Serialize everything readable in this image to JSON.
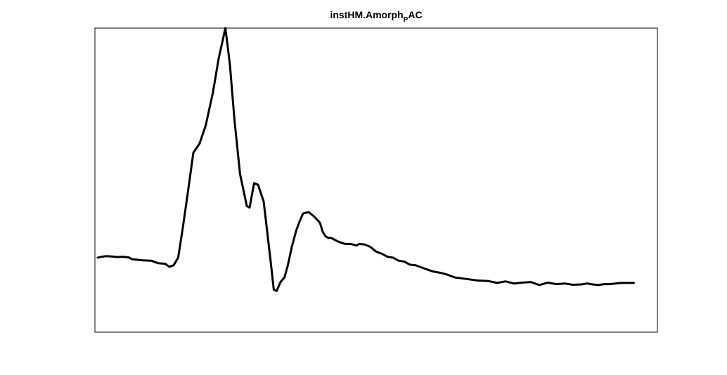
{
  "chart_data": {
    "type": "line",
    "title": "instHM.Amorph",
    "title_subscript": "P",
    "title_suffix": "AC",
    "xlabel": "",
    "ylabel": "",
    "grid": false,
    "legend": "none",
    "axis_ticks": false,
    "xlim": [
      0,
      1
    ],
    "ylim": [
      0,
      1
    ],
    "series": [
      {
        "color": "#000000",
        "x": [
          0.005,
          0.012,
          0.02,
          0.03,
          0.04,
          0.05,
          0.06,
          0.066,
          0.075,
          0.085,
          0.1,
          0.112,
          0.125,
          0.132,
          0.14,
          0.148,
          0.156,
          0.166,
          0.175,
          0.186,
          0.197,
          0.21,
          0.22,
          0.232,
          0.24,
          0.248,
          0.258,
          0.27,
          0.275,
          0.283,
          0.29,
          0.3,
          0.312,
          0.318,
          0.323,
          0.33,
          0.337,
          0.343,
          0.35,
          0.358,
          0.364,
          0.37,
          0.38,
          0.39,
          0.4,
          0.405,
          0.41,
          0.415,
          0.42,
          0.425,
          0.43,
          0.437,
          0.445,
          0.455,
          0.465,
          0.47,
          0.48,
          0.49,
          0.5,
          0.51,
          0.52,
          0.53,
          0.54,
          0.55,
          0.56,
          0.57,
          0.585,
          0.6,
          0.615,
          0.625,
          0.64,
          0.66,
          0.68,
          0.7,
          0.715,
          0.73,
          0.745,
          0.76,
          0.775,
          0.79,
          0.805,
          0.82,
          0.835,
          0.85,
          0.865,
          0.875,
          0.885,
          0.895,
          0.905,
          0.915,
          0.925,
          0.935,
          0.958
        ],
        "y": [
          0.245,
          0.248,
          0.25,
          0.249,
          0.247,
          0.248,
          0.246,
          0.24,
          0.238,
          0.236,
          0.235,
          0.227,
          0.225,
          0.215,
          0.22,
          0.245,
          0.34,
          0.47,
          0.59,
          0.62,
          0.68,
          0.79,
          0.9,
          1.0,
          0.88,
          0.7,
          0.52,
          0.415,
          0.41,
          0.49,
          0.485,
          0.43,
          0.24,
          0.14,
          0.135,
          0.165,
          0.18,
          0.22,
          0.28,
          0.335,
          0.365,
          0.39,
          0.395,
          0.38,
          0.36,
          0.33,
          0.315,
          0.31,
          0.31,
          0.305,
          0.3,
          0.295,
          0.29,
          0.29,
          0.285,
          0.29,
          0.288,
          0.28,
          0.265,
          0.258,
          0.248,
          0.245,
          0.235,
          0.232,
          0.222,
          0.22,
          0.21,
          0.2,
          0.195,
          0.19,
          0.18,
          0.175,
          0.17,
          0.168,
          0.162,
          0.167,
          0.16,
          0.163,
          0.165,
          0.155,
          0.163,
          0.158,
          0.16,
          0.156,
          0.157,
          0.16,
          0.157,
          0.155,
          0.158,
          0.158,
          0.16,
          0.162,
          0.162
        ]
      }
    ]
  }
}
